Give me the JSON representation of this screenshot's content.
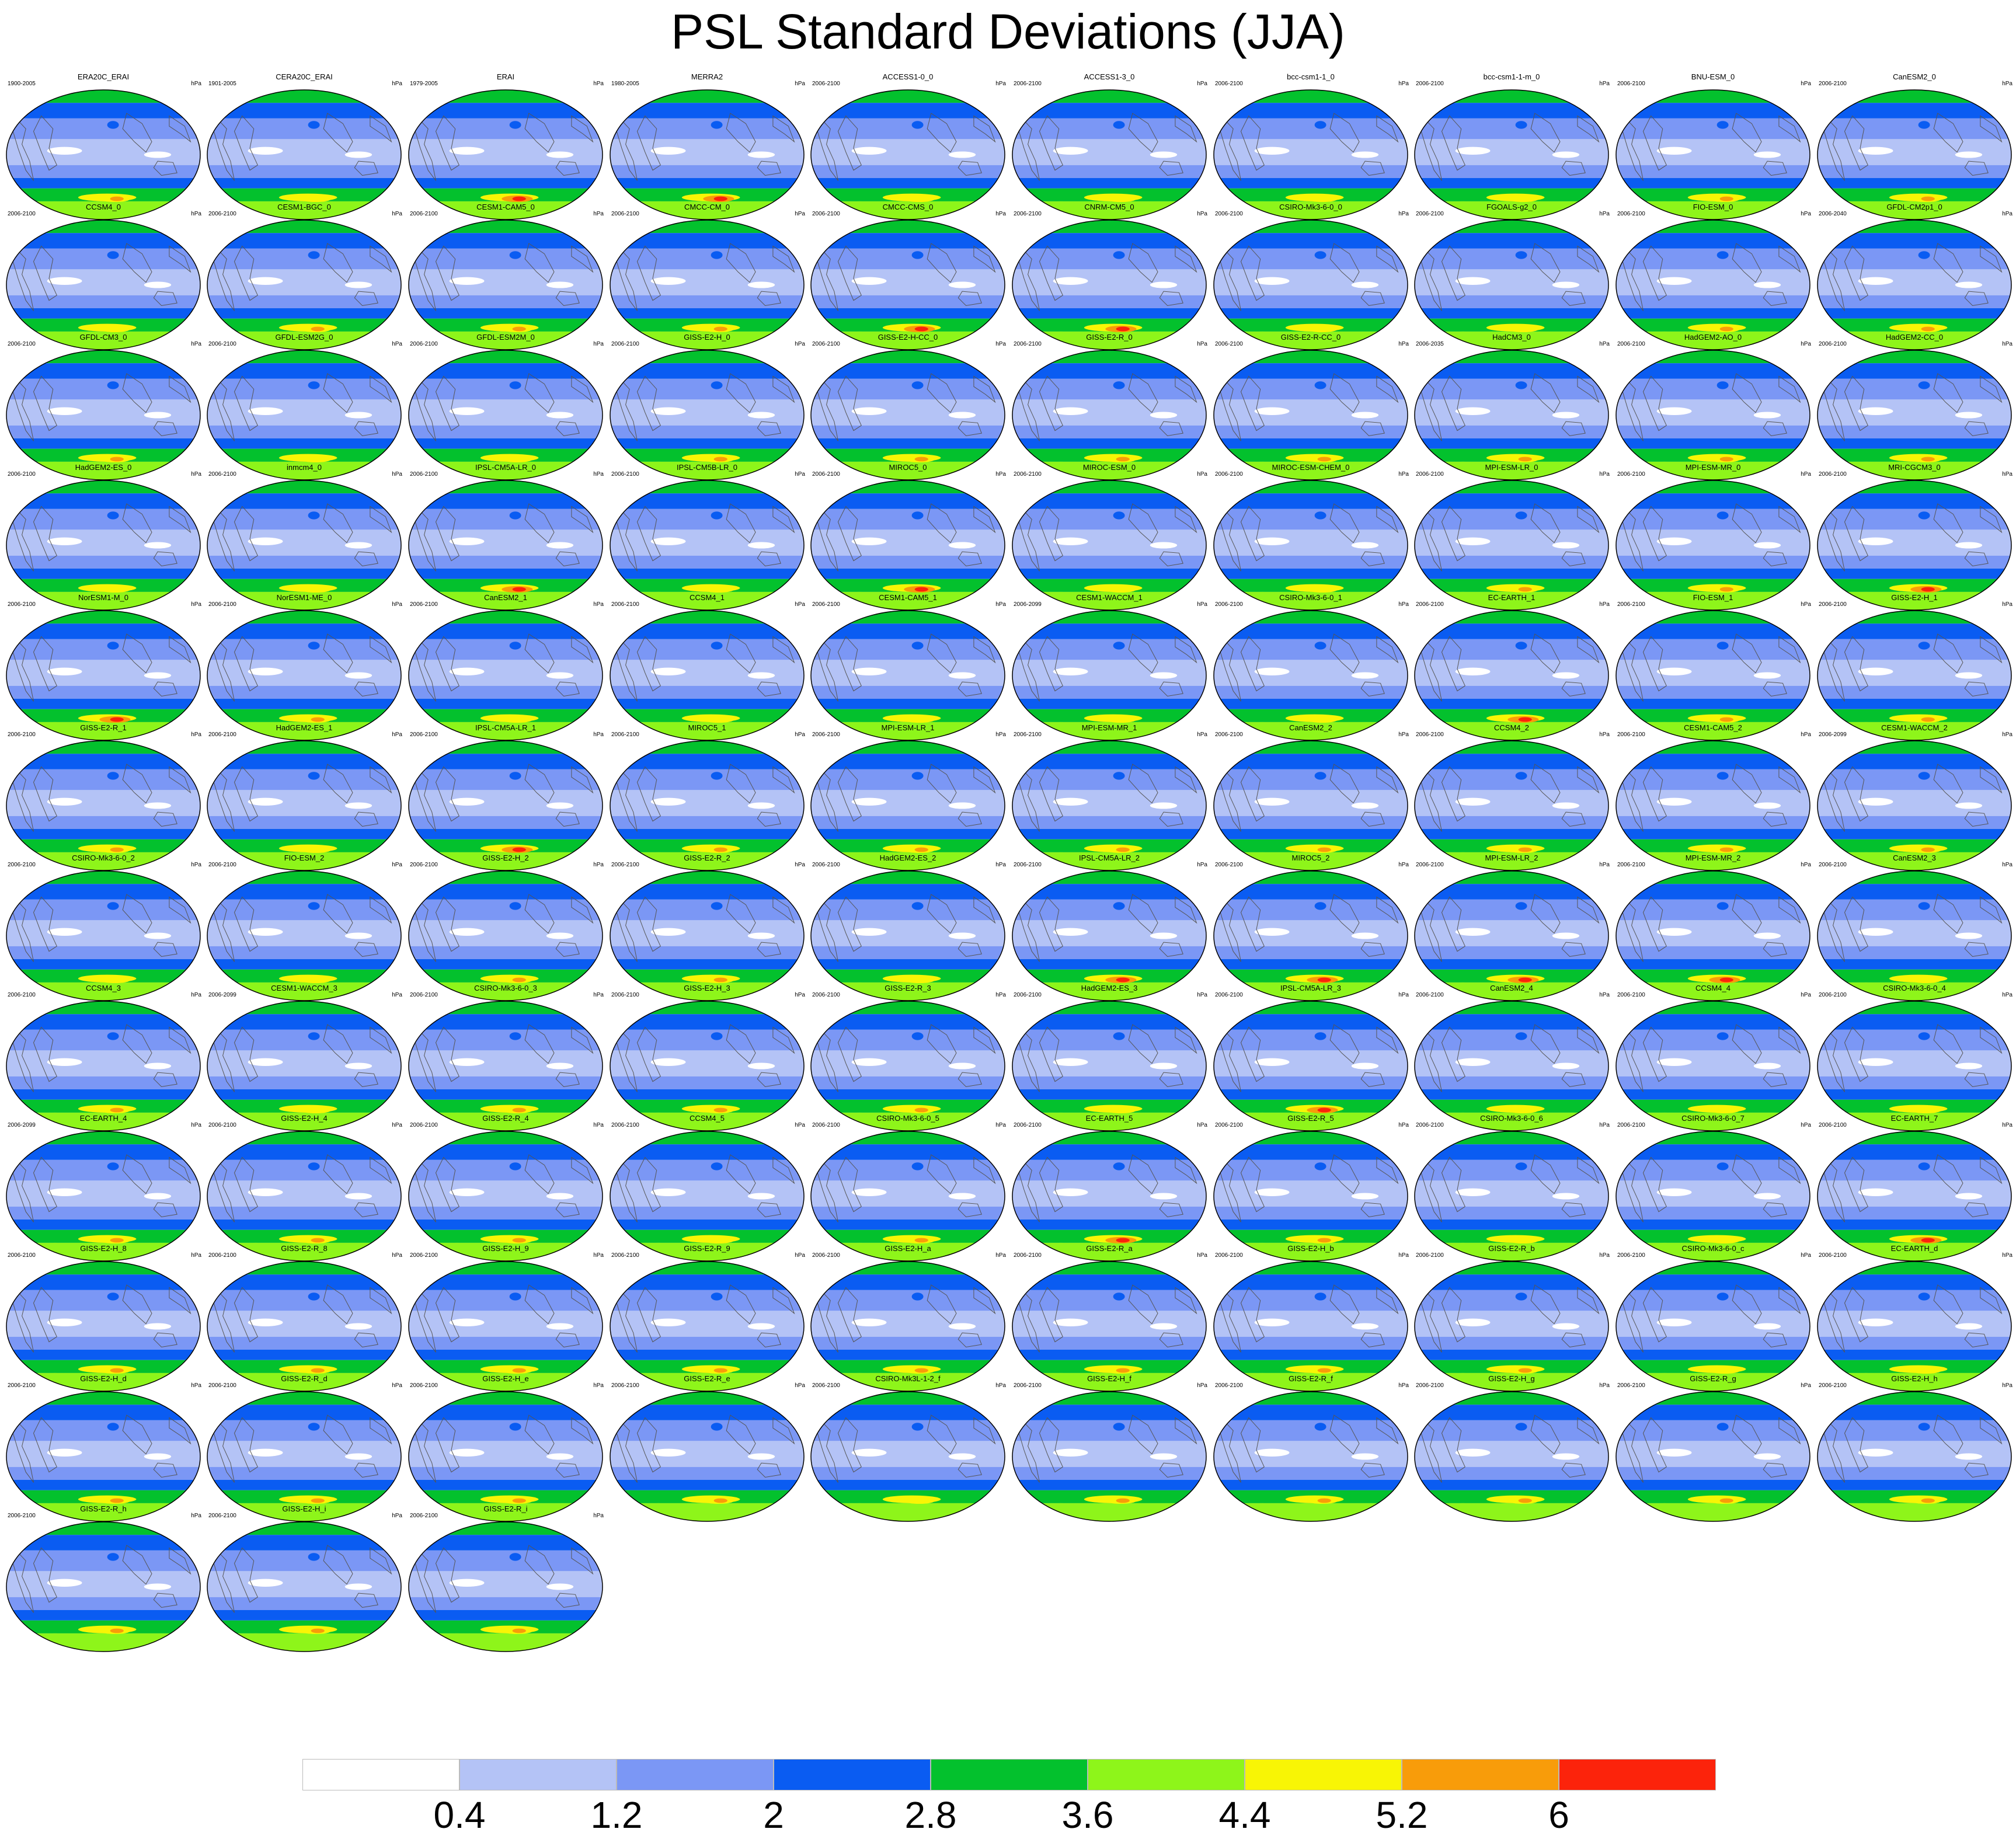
{
  "title": "PSL Standard Deviations (JJA)",
  "chart_data": {
    "type": "heatmap",
    "title": "PSL Standard Deviations (JJA)",
    "units": "hPa",
    "colorbar": {
      "levels": [
        "0.4",
        "1.2",
        "2",
        "2.8",
        "3.6",
        "4.4",
        "5.2",
        "6"
      ],
      "colors": [
        "#ffffff",
        "#b4c3f6",
        "#7b97f5",
        "#0a5cf2",
        "#03c12d",
        "#8ef51a",
        "#f8f505",
        "#f89c0a",
        "#fc230b"
      ]
    },
    "panels": [
      {
        "name": "ERA20C_ERAI",
        "period": "1900-2005",
        "units": "hPa",
        "peak": 5.6
      },
      {
        "name": "CERA20C_ERAI",
        "period": "1901-2005",
        "units": "hPa",
        "peak": 5.0
      },
      {
        "name": "ERAI",
        "period": "1979-2005",
        "units": "hPa",
        "peak": 6.2
      },
      {
        "name": "MERRA2",
        "period": "1980-2005",
        "units": "hPa",
        "peak": 6.2
      },
      {
        "name": "ACCESS1-0_0",
        "period": "2006-2100",
        "units": "hPa",
        "peak": 5.0
      },
      {
        "name": "ACCESS1-3_0",
        "period": "2006-2100",
        "units": "hPa",
        "peak": 4.8
      },
      {
        "name": "bcc-csm1-1_0",
        "period": "2006-2100",
        "units": "hPa",
        "peak": 4.6
      },
      {
        "name": "bcc-csm1-1-m_0",
        "period": "2006-2100",
        "units": "hPa",
        "peak": 5.0
      },
      {
        "name": "BNU-ESM_0",
        "period": "2006-2100",
        "units": "hPa",
        "peak": 5.4
      },
      {
        "name": "CanESM2_0",
        "period": "2006-2100",
        "units": "hPa",
        "peak": 5.4
      },
      {
        "name": "CCSM4_0",
        "period": "2006-2100",
        "units": "hPa",
        "peak": 5.0
      },
      {
        "name": "CESM1-BGC_0",
        "period": "2006-2100",
        "units": "hPa",
        "peak": 5.4
      },
      {
        "name": "CESM1-CAM5_0",
        "period": "2006-2100",
        "units": "hPa",
        "peak": 5.6
      },
      {
        "name": "CMCC-CM_0",
        "period": "2006-2100",
        "units": "hPa",
        "peak": 5.4
      },
      {
        "name": "CMCC-CMS_0",
        "period": "2006-2100",
        "units": "hPa",
        "peak": 6.2
      },
      {
        "name": "CNRM-CM5_0",
        "period": "2006-2100",
        "units": "hPa",
        "peak": 6.2
      },
      {
        "name": "CSIRO-Mk3-6-0_0",
        "period": "2006-2100",
        "units": "hPa",
        "peak": 4.8
      },
      {
        "name": "FGOALS-g2_0",
        "period": "2006-2100",
        "units": "hPa",
        "peak": 4.8
      },
      {
        "name": "FIO-ESM_0",
        "period": "2006-2100",
        "units": "hPa",
        "peak": 5.4
      },
      {
        "name": "GFDL-CM2p1_0",
        "period": "2006-2040",
        "units": "hPa",
        "peak": 5.8
      },
      {
        "name": "GFDL-CM3_0",
        "period": "2006-2100",
        "units": "hPa",
        "peak": 5.6
      },
      {
        "name": "GFDL-ESM2G_0",
        "period": "2006-2100",
        "units": "hPa",
        "peak": 5.0
      },
      {
        "name": "GFDL-ESM2M_0",
        "period": "2006-2100",
        "units": "hPa",
        "peak": 5.0
      },
      {
        "name": "GISS-E2-H_0",
        "period": "2006-2100",
        "units": "hPa",
        "peak": 5.4
      },
      {
        "name": "GISS-E2-H-CC_0",
        "period": "2006-2100",
        "units": "hPa",
        "peak": 5.4
      },
      {
        "name": "GISS-E2-R_0",
        "period": "2006-2100",
        "units": "hPa",
        "peak": 5.4
      },
      {
        "name": "GISS-E2-R-CC_0",
        "period": "2006-2100",
        "units": "hPa",
        "peak": 5.4
      },
      {
        "name": "HadCM3_0",
        "period": "2006-2035",
        "units": "hPa",
        "peak": 5.4
      },
      {
        "name": "HadGEM2-AO_0",
        "period": "2006-2100",
        "units": "hPa",
        "peak": 5.6
      },
      {
        "name": "HadGEM2-CC_0",
        "period": "2006-2100",
        "units": "hPa",
        "peak": 5.6
      },
      {
        "name": "HadGEM2-ES_0",
        "period": "2006-2100",
        "units": "hPa",
        "peak": 5.0
      },
      {
        "name": "inmcm4_0",
        "period": "2006-2100",
        "units": "hPa",
        "peak": 4.8
      },
      {
        "name": "IPSL-CM5A-LR_0",
        "period": "2006-2100",
        "units": "hPa",
        "peak": 6.2
      },
      {
        "name": "IPSL-CM5B-LR_0",
        "period": "2006-2100",
        "units": "hPa",
        "peak": 5.0
      },
      {
        "name": "MIROC5_0",
        "period": "2006-2100",
        "units": "hPa",
        "peak": 6.2
      },
      {
        "name": "MIROC-ESM_0",
        "period": "2006-2100",
        "units": "hPa",
        "peak": 4.8
      },
      {
        "name": "MIROC-ESM-CHEM_0",
        "period": "2006-2100",
        "units": "hPa",
        "peak": 4.8
      },
      {
        "name": "MPI-ESM-LR_0",
        "period": "2006-2100",
        "units": "hPa",
        "peak": 5.6
      },
      {
        "name": "MPI-ESM-MR_0",
        "period": "2006-2100",
        "units": "hPa",
        "peak": 5.6
      },
      {
        "name": "MRI-CGCM3_0",
        "period": "2006-2100",
        "units": "hPa",
        "peak": 6.2
      },
      {
        "name": "NorESM1-M_0",
        "period": "2006-2100",
        "units": "hPa",
        "peak": 6.2
      },
      {
        "name": "NorESM1-ME_0",
        "period": "2006-2100",
        "units": "hPa",
        "peak": 5.6
      },
      {
        "name": "CanESM2_1",
        "period": "2006-2100",
        "units": "hPa",
        "peak": 5.0
      },
      {
        "name": "CCSM4_1",
        "period": "2006-2100",
        "units": "hPa",
        "peak": 4.6
      },
      {
        "name": "CESM1-CAM5_1",
        "period": "2006-2100",
        "units": "hPa",
        "peak": 4.8
      },
      {
        "name": "CESM1-WACCM_1",
        "period": "2006-2099",
        "units": "hPa",
        "peak": 4.6
      },
      {
        "name": "CSIRO-Mk3-6-0_1",
        "period": "2006-2100",
        "units": "hPa",
        "peak": 4.6
      },
      {
        "name": "EC-EARTH_1",
        "period": "2006-2100",
        "units": "hPa",
        "peak": 6.2
      },
      {
        "name": "FIO-ESM_1",
        "period": "2006-2100",
        "units": "hPa",
        "peak": 5.6
      },
      {
        "name": "GISS-E2-H_1",
        "period": "2006-2100",
        "units": "hPa",
        "peak": 5.4
      },
      {
        "name": "GISS-E2-R_1",
        "period": "2006-2100",
        "units": "hPa",
        "peak": 5.4
      },
      {
        "name": "HadGEM2-ES_1",
        "period": "2006-2100",
        "units": "hPa",
        "peak": 5.0
      },
      {
        "name": "IPSL-CM5A-LR_1",
        "period": "2006-2100",
        "units": "hPa",
        "peak": 6.2
      },
      {
        "name": "MIROC5_1",
        "period": "2006-2100",
        "units": "hPa",
        "peak": 5.6
      },
      {
        "name": "MPI-ESM-LR_1",
        "period": "2006-2100",
        "units": "hPa",
        "peak": 5.6
      },
      {
        "name": "MPI-ESM-MR_1",
        "period": "2006-2100",
        "units": "hPa",
        "peak": 5.6
      },
      {
        "name": "CanESM2_2",
        "period": "2006-2100",
        "units": "hPa",
        "peak": 5.4
      },
      {
        "name": "CCSM4_2",
        "period": "2006-2100",
        "units": "hPa",
        "peak": 5.6
      },
      {
        "name": "CESM1-CAM5_2",
        "period": "2006-2100",
        "units": "hPa",
        "peak": 5.6
      },
      {
        "name": "CESM1-WACCM_2",
        "period": "2006-2099",
        "units": "hPa",
        "peak": 5.6
      },
      {
        "name": "CSIRO-Mk3-6-0_2",
        "period": "2006-2100",
        "units": "hPa",
        "peak": 4.6
      },
      {
        "name": "FIO-ESM_2",
        "period": "2006-2100",
        "units": "hPa",
        "peak": 4.8
      },
      {
        "name": "GISS-E2-H_2",
        "period": "2006-2100",
        "units": "hPa",
        "peak": 5.4
      },
      {
        "name": "GISS-E2-R_2",
        "period": "2006-2100",
        "units": "hPa",
        "peak": 5.4
      },
      {
        "name": "HadGEM2-ES_2",
        "period": "2006-2100",
        "units": "hPa",
        "peak": 5.0
      },
      {
        "name": "IPSL-CM5A-LR_2",
        "period": "2006-2100",
        "units": "hPa",
        "peak": 6.2
      },
      {
        "name": "MIROC5_2",
        "period": "2006-2100",
        "units": "hPa",
        "peak": 6.2
      },
      {
        "name": "MPI-ESM-LR_2",
        "period": "2006-2100",
        "units": "hPa",
        "peak": 6.2
      },
      {
        "name": "MPI-ESM-MR_2",
        "period": "2006-2100",
        "units": "hPa",
        "peak": 6.2
      },
      {
        "name": "CanESM2_3",
        "period": "2006-2100",
        "units": "hPa",
        "peak": 5.0
      },
      {
        "name": "CCSM4_3",
        "period": "2006-2100",
        "units": "hPa",
        "peak": 5.4
      },
      {
        "name": "CESM1-WACCM_3",
        "period": "2006-2099",
        "units": "hPa",
        "peak": 4.6
      },
      {
        "name": "CSIRO-Mk3-6-0_3",
        "period": "2006-2100",
        "units": "hPa",
        "peak": 5.6
      },
      {
        "name": "GISS-E2-H_3",
        "period": "2006-2100",
        "units": "hPa",
        "peak": 5.4
      },
      {
        "name": "GISS-E2-R_3",
        "period": "2006-2100",
        "units": "hPa",
        "peak": 5.4
      },
      {
        "name": "HadGEM2-ES_3",
        "period": "2006-2100",
        "units": "hPa",
        "peak": 5.0
      },
      {
        "name": "IPSL-CM5A-LR_3",
        "period": "2006-2100",
        "units": "hPa",
        "peak": 6.2
      },
      {
        "name": "CanESM2_4",
        "period": "2006-2100",
        "units": "hPa",
        "peak": 5.0
      },
      {
        "name": "CCSM4_4",
        "period": "2006-2100",
        "units": "hPa",
        "peak": 5.0
      },
      {
        "name": "CSIRO-Mk3-6-0_4",
        "period": "2006-2100",
        "units": "hPa",
        "peak": 4.8
      },
      {
        "name": "EC-EARTH_4",
        "period": "2006-2099",
        "units": "hPa",
        "peak": 5.4
      },
      {
        "name": "GISS-E2-H_4",
        "period": "2006-2100",
        "units": "hPa",
        "peak": 5.6
      },
      {
        "name": "GISS-E2-R_4",
        "period": "2006-2100",
        "units": "hPa",
        "peak": 5.6
      },
      {
        "name": "CCSM4_5",
        "period": "2006-2100",
        "units": "hPa",
        "peak": 4.8
      },
      {
        "name": "CSIRO-Mk3-6-0_5",
        "period": "2006-2100",
        "units": "hPa",
        "peak": 5.4
      },
      {
        "name": "EC-EARTH_5",
        "period": "2006-2100",
        "units": "hPa",
        "peak": 6.2
      },
      {
        "name": "GISS-E2-R_5",
        "period": "2006-2100",
        "units": "hPa",
        "peak": 5.4
      },
      {
        "name": "CSIRO-Mk3-6-0_6",
        "period": "2006-2100",
        "units": "hPa",
        "peak": 4.8
      },
      {
        "name": "CSIRO-Mk3-6-0_7",
        "period": "2006-2100",
        "units": "hPa",
        "peak": 4.6
      },
      {
        "name": "EC-EARTH_7",
        "period": "2006-2100",
        "units": "hPa",
        "peak": 6.2
      },
      {
        "name": "GISS-E2-H_8",
        "period": "2006-2100",
        "units": "hPa",
        "peak": 5.4
      },
      {
        "name": "GISS-E2-R_8",
        "period": "2006-2100",
        "units": "hPa",
        "peak": 5.4
      },
      {
        "name": "GISS-E2-H_9",
        "period": "2006-2100",
        "units": "hPa",
        "peak": 5.4
      },
      {
        "name": "GISS-E2-R_9",
        "period": "2006-2100",
        "units": "hPa",
        "peak": 5.4
      },
      {
        "name": "GISS-E2-H_a",
        "period": "2006-2100",
        "units": "hPa",
        "peak": 5.4
      },
      {
        "name": "GISS-E2-R_a",
        "period": "2006-2100",
        "units": "hPa",
        "peak": 5.4
      },
      {
        "name": "GISS-E2-H_b",
        "period": "2006-2100",
        "units": "hPa",
        "peak": 5.4
      },
      {
        "name": "GISS-E2-R_b",
        "period": "2006-2100",
        "units": "hPa",
        "peak": 5.4
      },
      {
        "name": "CSIRO-Mk3-6-0_c",
        "period": "2006-2100",
        "units": "hPa",
        "peak": 4.8
      },
      {
        "name": "EC-EARTH_d",
        "period": "2006-2100",
        "units": "hPa",
        "peak": 4.8
      },
      {
        "name": "GISS-E2-H_d",
        "period": "2006-2100",
        "units": "hPa",
        "peak": 5.6
      },
      {
        "name": "GISS-E2-R_d",
        "period": "2006-2100",
        "units": "hPa",
        "peak": 5.6
      },
      {
        "name": "GISS-E2-H_e",
        "period": "2006-2100",
        "units": "hPa",
        "peak": 5.4
      },
      {
        "name": "GISS-E2-R_e",
        "period": "2006-2100",
        "units": "hPa",
        "peak": 5.4
      },
      {
        "name": "CSIRO-Mk3L-1-2_f",
        "period": "2006-2100",
        "units": "hPa",
        "peak": 4.6
      },
      {
        "name": "GISS-E2-H_f",
        "period": "2006-2100",
        "units": "hPa",
        "peak": 5.4
      },
      {
        "name": "GISS-E2-R_f",
        "period": "2006-2100",
        "units": "hPa",
        "peak": 5.4
      },
      {
        "name": "GISS-E2-H_g",
        "period": "2006-2100",
        "units": "hPa",
        "peak": 5.4
      },
      {
        "name": "GISS-E2-R_g",
        "period": "2006-2100",
        "units": "hPa",
        "peak": 5.4
      },
      {
        "name": "GISS-E2-H_h",
        "period": "2006-2100",
        "units": "hPa",
        "peak": 5.4
      },
      {
        "name": "GISS-E2-R_h",
        "period": "2006-2100",
        "units": "hPa",
        "peak": 5.4
      },
      {
        "name": "GISS-E2-H_i",
        "period": "2006-2100",
        "units": "hPa",
        "peak": 5.4
      },
      {
        "name": "GISS-E2-R_i",
        "period": "2006-2100",
        "units": "hPa",
        "peak": 5.4
      }
    ]
  }
}
